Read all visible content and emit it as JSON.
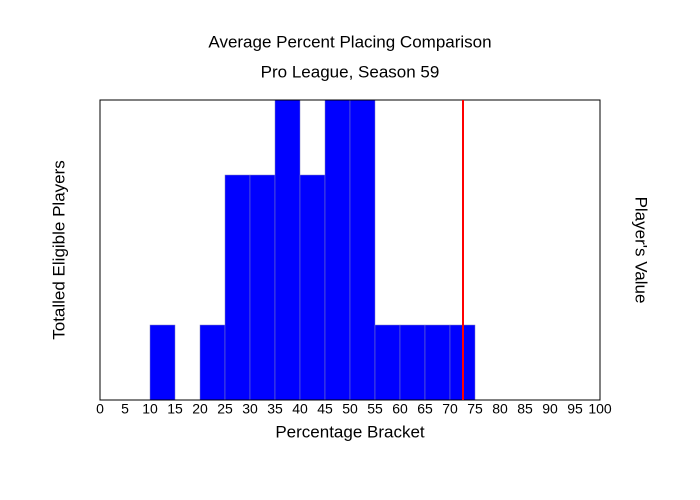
{
  "chart_data": {
    "type": "histogram",
    "title": "Average Percent Placing Comparison",
    "subtitle": "Pro League, Season 59",
    "xlabel": "Percentage Bracket",
    "ylabel": "Totalled Eligible Players",
    "bins": [
      0,
      5,
      10,
      15,
      20,
      25,
      30,
      35,
      40,
      45,
      50,
      55,
      60,
      65,
      70,
      75,
      80,
      85,
      90,
      95,
      100
    ],
    "values": [
      0,
      0,
      1,
      0,
      1,
      3,
      3,
      4,
      3,
      4,
      4,
      1,
      1,
      1,
      1,
      0,
      0,
      0,
      0,
      0
    ],
    "color": "#0000ff",
    "ylabel_color": "#0000cc",
    "xlim": [
      0,
      100
    ],
    "ylim": [
      0,
      4
    ],
    "xticks": [
      0,
      5,
      10,
      15,
      20,
      25,
      30,
      35,
      40,
      45,
      50,
      55,
      60,
      65,
      70,
      75,
      80,
      85,
      90,
      95,
      100
    ],
    "marker": {
      "label": "Player's Value",
      "value": 72.6,
      "color": "#ff0000"
    }
  }
}
